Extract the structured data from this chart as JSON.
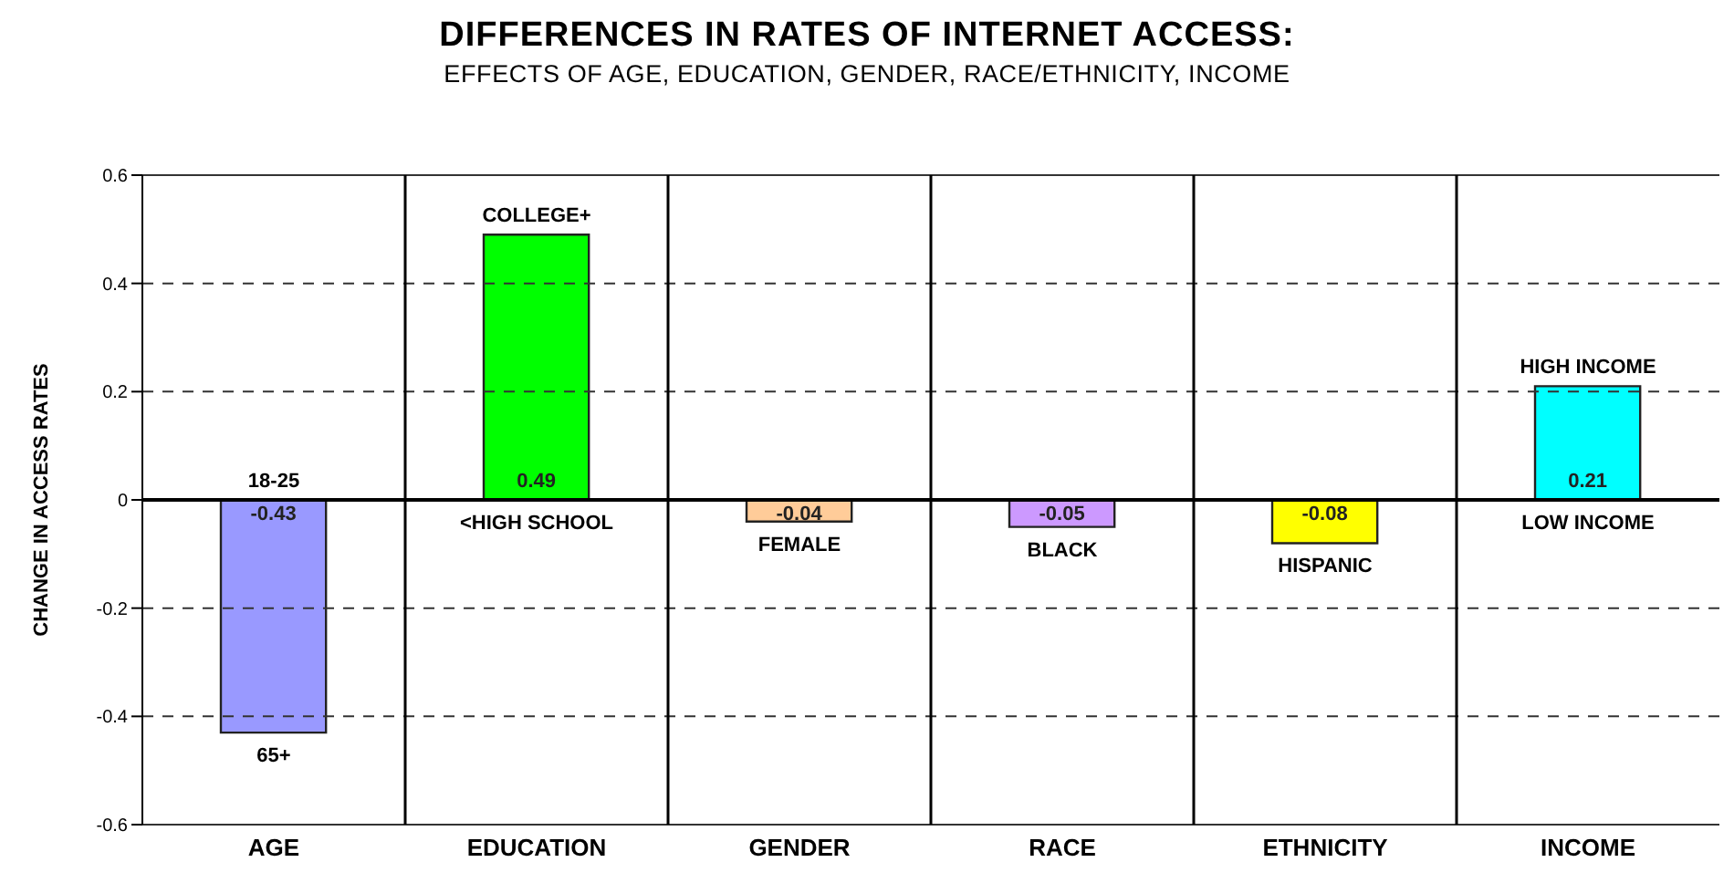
{
  "chart_data": {
    "type": "bar",
    "title": "DIFFERENCES IN RATES OF INTERNET ACCESS:",
    "subtitle": "EFFECTS OF AGE, EDUCATION, GENDER, RACE/ETHNICITY, INCOME",
    "ylabel": "CHANGE IN ACCESS RATES",
    "categories": [
      "AGE",
      "EDUCATION",
      "GENDER",
      "RACE",
      "ETHNICITY",
      "INCOME"
    ],
    "values": [
      -0.43,
      0.49,
      -0.04,
      -0.05,
      -0.08,
      0.21
    ],
    "colors": [
      "#9999ff",
      "#00ff00",
      "#ffcc99",
      "#cc99ff",
      "#ffff00",
      "#00ffff"
    ],
    "data_labels": true,
    "ylim": [
      -0.6,
      0.6
    ],
    "yticks": [
      -0.6,
      -0.4,
      -0.2,
      0,
      0.2,
      0.4,
      0.6
    ],
    "grid": true,
    "legend": false,
    "annotations": [
      {
        "text": "18-25",
        "x": "AGE",
        "y": 0
      },
      {
        "text": "65+",
        "x": "AGE",
        "y": -0.43
      },
      {
        "text": "COLLEGE+",
        "x": "EDUCATION",
        "y": 0.49
      },
      {
        "text": "<HIGH SCHOOL",
        "x": "EDUCATION",
        "y": 0
      },
      {
        "text": "FEMALE",
        "x": "GENDER",
        "y": -0.04
      },
      {
        "text": "BLACK",
        "x": "RACE",
        "y": -0.05
      },
      {
        "text": "HISPANIC",
        "x": "ETHNICITY",
        "y": -0.08
      },
      {
        "text": "HIGH INCOME",
        "x": "INCOME",
        "y": 0.21
      },
      {
        "text": "LOW INCOME",
        "x": "INCOME",
        "y": 0
      }
    ]
  }
}
